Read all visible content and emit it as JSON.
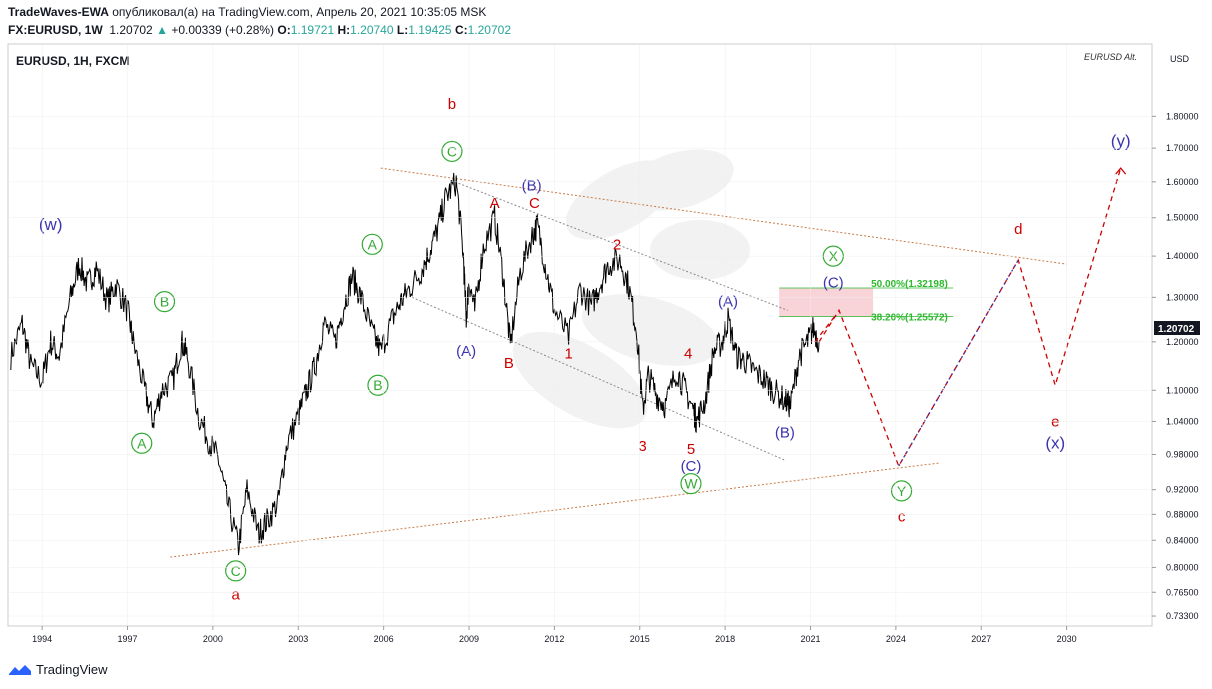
{
  "header": {
    "line1_author": "TradeWaves-EWA",
    "line1_rest": " опубликовал(а) на TradingView.com, Апрель 20, 2021 10:35:05 MSK",
    "symbol": "FX:EURUSD, 1W",
    "price": "1.20702",
    "arrow": "▲",
    "change": "+0.00339 (+0.28%)",
    "o_label": "O:",
    "o_value": "1.19721",
    "h_label": "H:",
    "h_value": "1.20740",
    "l_label": "L:",
    "l_value": "1.19425",
    "c_label": "C:",
    "c_value": "1.20702"
  },
  "footer": {
    "brand": "TradingView"
  },
  "colors": {
    "red": "#cc0000",
    "blue": "#3a34b0",
    "green": "#33aa33",
    "fib_green": "#2db82d",
    "price_line": "#000000",
    "trend_orange": "#c87b47",
    "channel_grey": "#8a8a8a",
    "fib_zone": "#f5c4cb",
    "bg_grid": "#eeeeee"
  },
  "chart_data": {
    "type": "line",
    "title": "EURUSD, 1H, FXCM",
    "overlay_label": "EURUSD Alt.",
    "currency_label": "USD",
    "last_price_label": "1.20702",
    "y_scale": "log",
    "ylim": [
      0.72,
      2.05
    ],
    "xlim": [
      1992.8,
      2033.0
    ],
    "x_ticks": [
      1994,
      1997,
      2000,
      2003,
      2006,
      2009,
      2012,
      2015,
      2018,
      2021,
      2024,
      2027,
      2030
    ],
    "y_ticks": [
      {
        "v": 1.8,
        "label": "1.80000"
      },
      {
        "v": 1.7,
        "label": "1.70000"
      },
      {
        "v": 1.6,
        "label": "1.60000"
      },
      {
        "v": 1.5,
        "label": "1.50000"
      },
      {
        "v": 1.4,
        "label": "1.40000"
      },
      {
        "v": 1.3,
        "label": "1.30000"
      },
      {
        "v": 1.2,
        "label": "1.20000"
      },
      {
        "v": 1.1,
        "label": "1.10000"
      },
      {
        "v": 1.04,
        "label": "1.04000"
      },
      {
        "v": 0.98,
        "label": "0.98000"
      },
      {
        "v": 0.92,
        "label": "0.92000"
      },
      {
        "v": 0.88,
        "label": "0.88000"
      },
      {
        "v": 0.84,
        "label": "0.84000"
      },
      {
        "v": 0.8,
        "label": "0.80000"
      },
      {
        "v": 0.765,
        "label": "0.76500"
      },
      {
        "v": 0.733,
        "label": "0.73300"
      }
    ],
    "price_series": [
      [
        1992.9,
        1.17
      ],
      [
        1993.3,
        1.24
      ],
      [
        1993.6,
        1.15
      ],
      [
        1994.0,
        1.12
      ],
      [
        1994.3,
        1.2
      ],
      [
        1994.6,
        1.17
      ],
      [
        1995.0,
        1.3
      ],
      [
        1995.3,
        1.38
      ],
      [
        1995.6,
        1.33
      ],
      [
        1995.9,
        1.37
      ],
      [
        1996.3,
        1.29
      ],
      [
        1996.6,
        1.33
      ],
      [
        1997.0,
        1.27
      ],
      [
        1997.2,
        1.2
      ],
      [
        1997.6,
        1.1
      ],
      [
        1997.9,
        1.04
      ],
      [
        1998.2,
        1.1
      ],
      [
        1998.6,
        1.12
      ],
      [
        1998.9,
        1.2
      ],
      [
        1999.1,
        1.17
      ],
      [
        1999.5,
        1.05
      ],
      [
        1999.9,
        1.0
      ],
      [
        2000.2,
        0.97
      ],
      [
        2000.5,
        0.9
      ],
      [
        2000.9,
        0.83
      ],
      [
        2001.2,
        0.92
      ],
      [
        2001.6,
        0.85
      ],
      [
        2001.9,
        0.87
      ],
      [
        2002.3,
        0.9
      ],
      [
        2002.6,
        1.0
      ],
      [
        2003.0,
        1.05
      ],
      [
        2003.3,
        1.1
      ],
      [
        2003.6,
        1.15
      ],
      [
        2003.9,
        1.24
      ],
      [
        2004.3,
        1.2
      ],
      [
        2004.6,
        1.28
      ],
      [
        2004.9,
        1.35
      ],
      [
        2005.2,
        1.3
      ],
      [
        2005.6,
        1.22
      ],
      [
        2005.9,
        1.18
      ],
      [
        2006.3,
        1.25
      ],
      [
        2006.6,
        1.29
      ],
      [
        2006.9,
        1.32
      ],
      [
        2007.3,
        1.36
      ],
      [
        2007.6,
        1.41
      ],
      [
        2007.9,
        1.47
      ],
      [
        2008.2,
        1.56
      ],
      [
        2008.55,
        1.6
      ],
      [
        2008.8,
        1.4
      ],
      [
        2008.9,
        1.25
      ],
      [
        2009.0,
        1.34
      ],
      [
        2009.2,
        1.27
      ],
      [
        2009.5,
        1.42
      ],
      [
        2009.9,
        1.5
      ],
      [
        2010.2,
        1.35
      ],
      [
        2010.45,
        1.19
      ],
      [
        2010.8,
        1.36
      ],
      [
        2011.2,
        1.45
      ],
      [
        2011.4,
        1.48
      ],
      [
        2011.7,
        1.37
      ],
      [
        2012.0,
        1.27
      ],
      [
        2012.5,
        1.21
      ],
      [
        2012.9,
        1.32
      ],
      [
        2013.3,
        1.28
      ],
      [
        2013.6,
        1.33
      ],
      [
        2013.9,
        1.38
      ],
      [
        2014.3,
        1.39
      ],
      [
        2014.6,
        1.33
      ],
      [
        2014.9,
        1.22
      ],
      [
        2015.1,
        1.06
      ],
      [
        2015.3,
        1.13
      ],
      [
        2015.6,
        1.09
      ],
      [
        2015.9,
        1.07
      ],
      [
        2016.3,
        1.14
      ],
      [
        2016.6,
        1.1
      ],
      [
        2016.9,
        1.06
      ],
      [
        2017.0,
        1.04
      ],
      [
        2017.3,
        1.08
      ],
      [
        2017.6,
        1.18
      ],
      [
        2017.9,
        1.2
      ],
      [
        2018.1,
        1.25
      ],
      [
        2018.4,
        1.17
      ],
      [
        2018.7,
        1.16
      ],
      [
        2019.0,
        1.14
      ],
      [
        2019.4,
        1.12
      ],
      [
        2019.7,
        1.1
      ],
      [
        2020.1,
        1.08
      ],
      [
        2020.3,
        1.07
      ],
      [
        2020.6,
        1.17
      ],
      [
        2020.9,
        1.2
      ],
      [
        2021.1,
        1.23
      ],
      [
        2021.3,
        1.2
      ]
    ],
    "projections": [
      {
        "name": "c-to-d-to-e",
        "color": "#cc0000",
        "points": [
          [
            2021.3,
            1.2
          ],
          [
            2022.0,
            1.27
          ],
          [
            2024.1,
            0.96
          ],
          [
            2028.3,
            1.39
          ],
          [
            2029.6,
            1.11
          ],
          [
            2031.9,
            1.64
          ]
        ]
      },
      {
        "name": "short-up",
        "color": "#cc0000",
        "points": [
          [
            2021.15,
            1.2
          ],
          [
            2021.9,
            1.26
          ]
        ]
      },
      {
        "name": "y-dotted",
        "color": "#3a34b0",
        "points": [
          [
            2024.1,
            0.96
          ],
          [
            2028.3,
            1.39
          ]
        ]
      }
    ],
    "trendlines": [
      {
        "name": "upper-orange",
        "color": "#c87b47",
        "points": [
          [
            2005.9,
            1.64
          ],
          [
            2030.0,
            1.38
          ]
        ]
      },
      {
        "name": "lower-orange",
        "color": "#c87b47",
        "points": [
          [
            1998.5,
            0.815
          ],
          [
            2025.5,
            0.965
          ]
        ]
      },
      {
        "name": "channel-upper",
        "color": "#8a8a8a",
        "points": [
          [
            2008.5,
            1.6
          ],
          [
            2020.2,
            1.27
          ]
        ]
      },
      {
        "name": "channel-lower",
        "color": "#8a8a8a",
        "points": [
          [
            2007.0,
            1.3
          ],
          [
            2020.1,
            0.97
          ]
        ]
      }
    ],
    "fib_zone": {
      "y1": 1.32198,
      "y2": 1.25572,
      "x1": 2019.9,
      "x2": 2023.2
    },
    "fib_levels": [
      {
        "label": "50.00%(1.32198)",
        "v": 1.32198
      },
      {
        "label": "38.20%(1.25572)",
        "v": 1.25572
      }
    ],
    "annotations": [
      {
        "text": "(w)",
        "x": 1994.3,
        "y": 1.48,
        "color": "blue",
        "style": "plain"
      },
      {
        "text": "A",
        "x": 2005.6,
        "y": 1.43,
        "color": "green",
        "style": "circle"
      },
      {
        "text": "B",
        "x": 1998.3,
        "y": 1.29,
        "color": "green",
        "style": "circle"
      },
      {
        "text": "A",
        "x": 1997.5,
        "y": 1.0,
        "color": "green",
        "style": "circle"
      },
      {
        "text": "B",
        "x": 2005.8,
        "y": 1.11,
        "color": "green",
        "style": "circle"
      },
      {
        "text": "C",
        "x": 2000.8,
        "y": 0.795,
        "color": "green",
        "style": "circle"
      },
      {
        "text": "a",
        "x": 2000.8,
        "y": 0.762,
        "color": "red",
        "style": "plain"
      },
      {
        "text": "b",
        "x": 2008.4,
        "y": 1.84,
        "color": "red",
        "style": "plain"
      },
      {
        "text": "C",
        "x": 2008.4,
        "y": 1.69,
        "color": "green",
        "style": "circle"
      },
      {
        "text": "A",
        "x": 2009.9,
        "y": 1.54,
        "color": "red",
        "style": "plain"
      },
      {
        "text": "C",
        "x": 2011.3,
        "y": 1.54,
        "color": "red",
        "style": "plain"
      },
      {
        "text": "(B)",
        "x": 2011.2,
        "y": 1.59,
        "color": "blue",
        "style": "plain"
      },
      {
        "text": "(A)",
        "x": 2008.9,
        "y": 1.18,
        "color": "blue",
        "style": "plain"
      },
      {
        "text": "B",
        "x": 2010.4,
        "y": 1.155,
        "color": "red",
        "style": "plain"
      },
      {
        "text": "1",
        "x": 2012.5,
        "y": 1.175,
        "color": "red",
        "style": "plain"
      },
      {
        "text": "2",
        "x": 2014.2,
        "y": 1.43,
        "color": "red",
        "style": "plain"
      },
      {
        "text": "3",
        "x": 2015.1,
        "y": 0.995,
        "color": "red",
        "style": "plain"
      },
      {
        "text": "4",
        "x": 2016.7,
        "y": 1.175,
        "color": "red",
        "style": "plain"
      },
      {
        "text": "5",
        "x": 2016.8,
        "y": 0.99,
        "color": "red",
        "style": "plain"
      },
      {
        "text": "(C)",
        "x": 2016.8,
        "y": 0.96,
        "color": "blue",
        "style": "plain"
      },
      {
        "text": "W",
        "x": 2016.8,
        "y": 0.93,
        "color": "green",
        "style": "circle"
      },
      {
        "text": "(A)",
        "x": 2018.1,
        "y": 1.29,
        "color": "blue",
        "style": "plain"
      },
      {
        "text": "(B)",
        "x": 2020.1,
        "y": 1.02,
        "color": "blue",
        "style": "plain"
      },
      {
        "text": "X",
        "x": 2021.8,
        "y": 1.4,
        "color": "green",
        "style": "circle"
      },
      {
        "text": "(C)",
        "x": 2021.8,
        "y": 1.335,
        "color": "blue",
        "style": "plain"
      },
      {
        "text": "d",
        "x": 2028.3,
        "y": 1.47,
        "color": "red",
        "style": "plain"
      },
      {
        "text": "e",
        "x": 2029.6,
        "y": 1.04,
        "color": "red",
        "style": "plain"
      },
      {
        "text": "(x)",
        "x": 2029.6,
        "y": 1.0,
        "color": "blue",
        "style": "plain"
      },
      {
        "text": "(y)",
        "x": 2031.9,
        "y": 1.72,
        "color": "blue",
        "style": "plain"
      },
      {
        "text": "Y",
        "x": 2024.2,
        "y": 0.918,
        "color": "green",
        "style": "circle"
      },
      {
        "text": "c",
        "x": 2024.2,
        "y": 0.877,
        "color": "red",
        "style": "plain"
      }
    ]
  }
}
